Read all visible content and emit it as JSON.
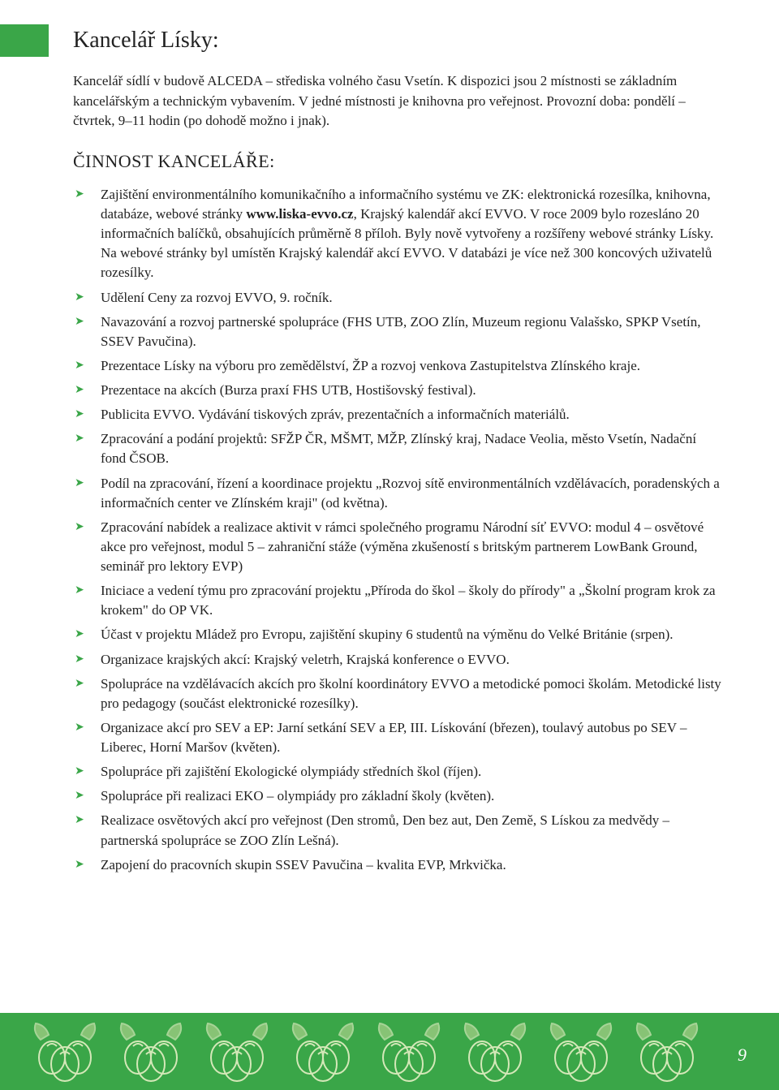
{
  "colors": {
    "accent": "#3aa648",
    "text": "#222222",
    "background": "#ffffff",
    "footer_bg": "#3aa648",
    "page_num": "#ffffff",
    "nut_outline": "#d4e8b8",
    "leaf_fill": "#a8d088"
  },
  "typography": {
    "body_font": "Georgia, serif",
    "title_size_pt": 21,
    "heading_size_pt": 17,
    "body_size_pt": 13
  },
  "title": "Kancelář Lísky:",
  "intro": "Kancelář sídlí v budově ALCEDA – střediska volného času Vsetín. K dispozici jsou 2 místnosti se základním kancelářským a technickým vybavením. V jedné místnosti je knihovna pro veřejnost. Provozní doba: pondělí – čtvrtek, 9–11 hodin (po dohodě možno i jnak).",
  "section_heading": "ČINNOST KANCELÁŘE:",
  "bold_link": "www.liska-evvo.cz",
  "items": [
    {
      "pre": "Zajištění environmentálního komunikačního a informačního systému ve ZK: elektronická rozesílka, knihovna, databáze, webové stránky ",
      "bold": "www.liska-evvo.cz",
      "post": ", Krajský kalendář akcí EVVO. V roce 2009 bylo rozesláno 20 informačních balíčků, obsahujících průměrně 8 příloh. Byly nově vytvořeny a rozšířeny webové stránky Lísky. Na webové stránky byl umístěn Krajský kalendář akcí EVVO. V databázi je více než 300 koncových uživatelů rozesílky."
    },
    {
      "text": "Udělení Ceny za rozvoj EVVO, 9. ročník."
    },
    {
      "text": "Navazování a rozvoj partnerské spolupráce (FHS UTB, ZOO Zlín, Muzeum regionu Valašsko, SPKP Vsetín, SSEV Pavučina)."
    },
    {
      "text": "Prezentace Lísky na výboru pro zemědělství, ŽP a rozvoj venkova Zastupitelstva Zlínského kraje."
    },
    {
      "text": "Prezentace na akcích (Burza praxí FHS UTB, Hostišovský festival)."
    },
    {
      "text": "Publicita EVVO. Vydávání tiskových zpráv, prezentačních a informačních materiálů."
    },
    {
      "text": "Zpracování a podání projektů: SFŽP ČR, MŠMT, MŽP, Zlínský kraj, Nadace Veolia, město Vsetín, Nadační fond ČSOB."
    },
    {
      "text": "Podíl na zpracování, řízení a koordinace projektu „Rozvoj sítě environmentálních vzdělávacích, poradenských a informačních center ve Zlínském kraji\" (od května)."
    },
    {
      "text": "Zpracování nabídek a realizace aktivit v rámci společného programu Národní síť EVVO: modul 4 – osvětové akce pro veřejnost, modul 5 – zahraniční stáže (výměna zkušeností s britským partnerem LowBank Ground, seminář pro lektory EVP)"
    },
    {
      "text": "Iniciace a vedení týmu pro zpracování projektu „Příroda do škol – školy do přírody\" a „Školní program krok za krokem\" do OP VK."
    },
    {
      "text": "Účast v projektu Mládež pro Evropu, zajištění skupiny 6 studentů na výměnu do Velké Británie (srpen)."
    },
    {
      "text": "Organizace krajských akcí: Krajský veletrh, Krajská konference o EVVO."
    },
    {
      "text": "Spolupráce na vzdělávacích akcích pro školní koordinátory EVVO a metodické pomoci školám. Metodické listy pro pedagogy (součást elektronické rozesílky)."
    },
    {
      "text": "Organizace akcí pro SEV a EP: Jarní setkání SEV a EP, III. Lískování (březen), toulavý autobus po SEV – Liberec, Horní Maršov (květen)."
    },
    {
      "text": "Spolupráce při zajištění Ekologické olympiády středních škol (říjen)."
    },
    {
      "text": "Spolupráce při realizaci EKO – olympiády pro základní školy (květen)."
    },
    {
      "text": "Realizace osvětových akcí pro veřejnost (Den stromů, Den bez aut, Den Země, S Lískou za medvědy – partnerská spolupráce se ZOO Zlín Lešná)."
    },
    {
      "text": "Zapojení do pracovních skupin SSEV Pavučina – kvalita EVP, Mrkvička."
    }
  ],
  "footer": {
    "nut_count": 8,
    "page_number": "9"
  }
}
